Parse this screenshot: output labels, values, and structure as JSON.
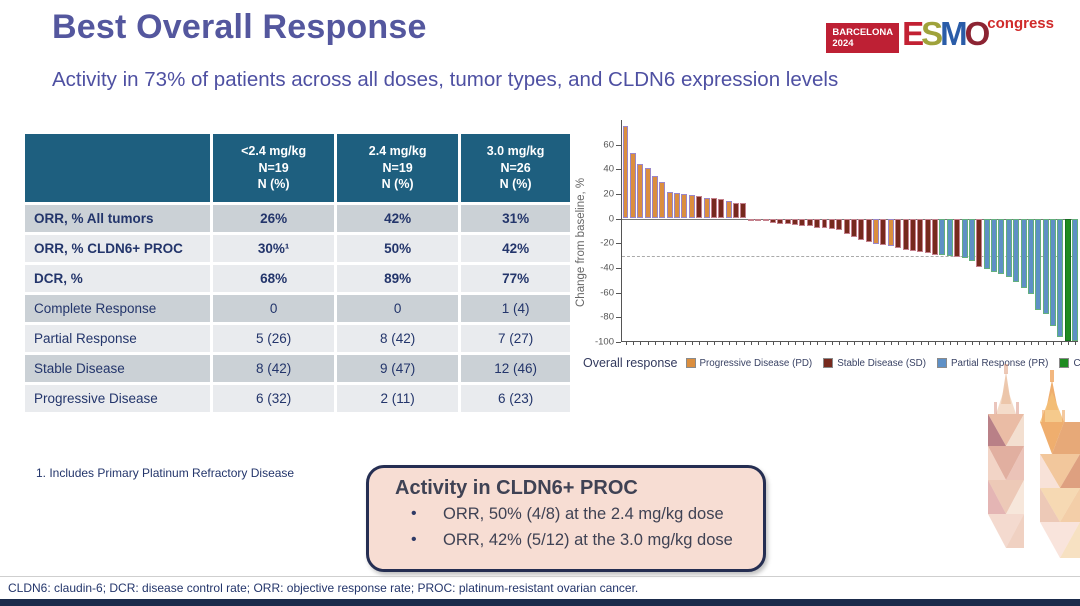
{
  "slide": {
    "title": "Best Overall Response",
    "subtitle": "Activity in 73% of patients across all doses, tumor types, and CLDN6 expression levels",
    "footnote": "1. Includes Primary Platinum Refractory Disease",
    "footer": "CLDN6: claudin-6; DCR: disease control rate; ORR: objective response rate; PROC: platinum-resistant ovarian cancer."
  },
  "logo": {
    "location": "BARCELONA",
    "year": "2024",
    "brand": [
      {
        "ch": "E",
        "color": "#C22133"
      },
      {
        "ch": "S",
        "color": "#9FA23B"
      },
      {
        "ch": "M",
        "color": "#2A5CA8"
      },
      {
        "ch": "O",
        "color": "#8C2433"
      }
    ],
    "congress": "congress"
  },
  "table": {
    "columns": [
      [
        "<2.4 mg/kg",
        "N=19",
        "N (%)"
      ],
      [
        "2.4 mg/kg",
        "N=19",
        "N (%)"
      ],
      [
        "3.0 mg/kg",
        "N=26",
        "N (%)"
      ]
    ],
    "rows": [
      {
        "label": "ORR, % All tumors",
        "values": [
          "26%",
          "42%",
          "31%"
        ],
        "bold": true,
        "shade": "dark"
      },
      {
        "label": "ORR, % CLDN6+ PROC",
        "values": [
          "30%¹",
          "50%",
          "42%"
        ],
        "bold": true,
        "shade": "light"
      },
      {
        "label": "DCR, %",
        "values": [
          "68%",
          "89%",
          "77%"
        ],
        "bold": true,
        "shade": "light"
      },
      {
        "label": "Complete Response",
        "values": [
          "0",
          "0",
          "1 (4)"
        ],
        "bold": false,
        "shade": "dark"
      },
      {
        "label": "Partial Response",
        "values": [
          "5 (26)",
          "8 (42)",
          "7 (27)"
        ],
        "bold": false,
        "shade": "light"
      },
      {
        "label": "Stable Disease",
        "values": [
          "8 (42)",
          "9 (47)",
          "12 (46)"
        ],
        "bold": false,
        "shade": "dark"
      },
      {
        "label": "Progressive Disease",
        "values": [
          "6 (32)",
          "2 (11)",
          "6 (23)"
        ],
        "bold": false,
        "shade": "light"
      }
    ]
  },
  "chart_data": {
    "type": "bar",
    "subtype": "waterfall",
    "title": "",
    "xlabel": "",
    "ylabel": "Change from baseline, %",
    "ylim": [
      -100,
      80
    ],
    "yticks": [
      60,
      40,
      20,
      0,
      -20,
      -40,
      -60,
      -80,
      -100
    ],
    "reference_line": -30,
    "grid": false,
    "legend_position": "bottom",
    "legend_title": "Overall response",
    "legend": [
      {
        "key": "PD",
        "label": "Progressive Disease (PD)",
        "color": "#DB8E3E"
      },
      {
        "key": "SD",
        "label": "Stable Disease (SD)",
        "color": "#76291D"
      },
      {
        "key": "PR",
        "label": "Partial Response (PR)",
        "color": "#5E90C6"
      },
      {
        "key": "CR",
        "label": "Complete Response (CR)",
        "color": "#1F8B21"
      }
    ],
    "bar_borders": {
      "PD": "#9A86C9",
      "SD": "#C4808C",
      "PR": "#63B07E",
      "CR": "#14701F"
    },
    "points": [
      [
        75,
        "PD"
      ],
      [
        53,
        "PD"
      ],
      [
        44,
        "PD"
      ],
      [
        41,
        "PD"
      ],
      [
        35,
        "PD"
      ],
      [
        30,
        "PD"
      ],
      [
        22,
        "PD"
      ],
      [
        21,
        "PD"
      ],
      [
        20,
        "PD"
      ],
      [
        19,
        "PD"
      ],
      [
        18,
        "SD"
      ],
      [
        17,
        "PD"
      ],
      [
        17,
        "SD"
      ],
      [
        16,
        "SD"
      ],
      [
        14,
        "PD"
      ],
      [
        13,
        "SD"
      ],
      [
        13,
        "SD"
      ],
      [
        -1,
        "SD"
      ],
      [
        -2,
        "SD"
      ],
      [
        -3,
        "SD"
      ],
      [
        -4,
        "SD"
      ],
      [
        -5,
        "SD"
      ],
      [
        -5,
        "SD"
      ],
      [
        -6,
        "SD"
      ],
      [
        -7,
        "SD"
      ],
      [
        -7,
        "SD"
      ],
      [
        -8,
        "SD"
      ],
      [
        -8,
        "SD"
      ],
      [
        -9,
        "SD"
      ],
      [
        -10,
        "SD"
      ],
      [
        -13,
        "SD"
      ],
      [
        -16,
        "SD"
      ],
      [
        -18,
        "SD"
      ],
      [
        -20,
        "SD"
      ],
      [
        -21,
        "PD"
      ],
      [
        -22,
        "SD"
      ],
      [
        -23,
        "PD"
      ],
      [
        -25,
        "SD"
      ],
      [
        -26,
        "SD"
      ],
      [
        -27,
        "SD"
      ],
      [
        -28,
        "SD"
      ],
      [
        -29,
        "SD"
      ],
      [
        -30,
        "SD"
      ],
      [
        -30,
        "PR"
      ],
      [
        -31,
        "PR"
      ],
      [
        -32,
        "SD"
      ],
      [
        -33,
        "PR"
      ],
      [
        -35,
        "PR"
      ],
      [
        -40,
        "SD"
      ],
      [
        -42,
        "PR"
      ],
      [
        -44,
        "PR"
      ],
      [
        -46,
        "PR"
      ],
      [
        -48,
        "PR"
      ],
      [
        -52,
        "PR"
      ],
      [
        -57,
        "PR"
      ],
      [
        -62,
        "PR"
      ],
      [
        -75,
        "PR"
      ],
      [
        -78,
        "PR"
      ],
      [
        -88,
        "PR"
      ],
      [
        -97,
        "PR"
      ],
      [
        -100,
        "CR"
      ],
      [
        -100,
        "PR"
      ]
    ]
  },
  "callout": {
    "title": "Activity in CLDN6+ PROC",
    "bullets": [
      "ORR, 50% (4/8) at the 2.4 mg/kg dose",
      "ORR, 42% (5/12) at the 3.0 mg/kg dose"
    ]
  },
  "colors": {
    "title_purple": "#54579E",
    "subtitle_purple": "#4E50A2",
    "header_teal": "#1E5F7F",
    "row_dark": "#CBD1D6",
    "row_light": "#E9EBEE",
    "text_navy": "#23356B",
    "callout_bg": "#F7DDD3",
    "callout_border": "#252E52",
    "footer_bar_navy": "#1B2B4B",
    "esmo_red": "#BE2034"
  }
}
